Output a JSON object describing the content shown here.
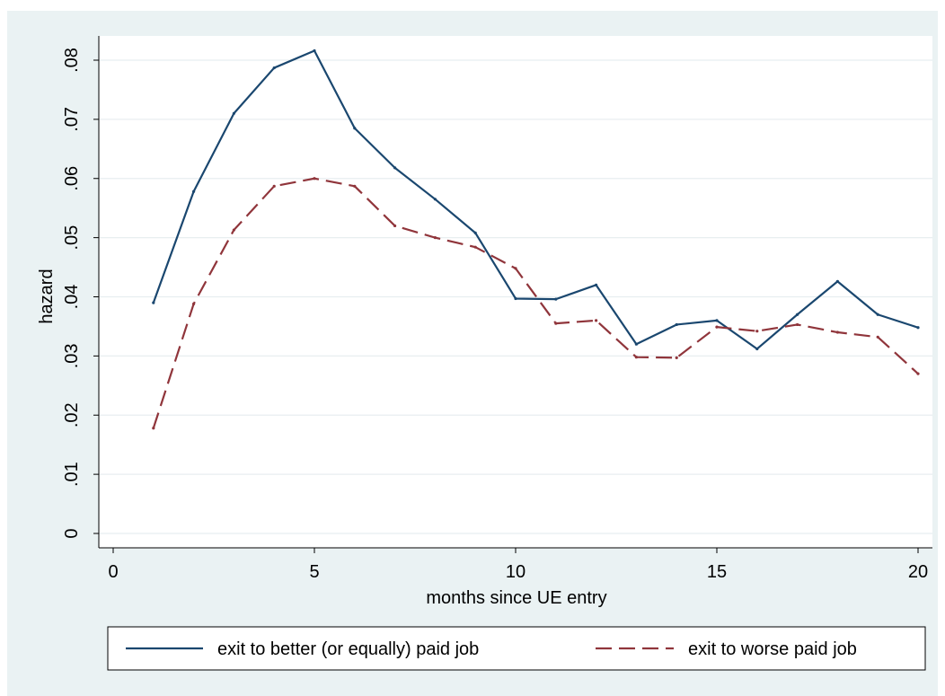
{
  "colors": {
    "background": "#eaf2f3",
    "plot_background": "#ffffff",
    "grid": "#e8eef0",
    "series_better": "#1a476f",
    "series_worse": "#90353b"
  },
  "chart_data": {
    "type": "line",
    "title": "",
    "xlabel": "months since UE entry",
    "ylabel": "hazard",
    "xlim": [
      0,
      20
    ],
    "ylim": [
      0,
      0.08
    ],
    "x_ticks": [
      0,
      5,
      10,
      15,
      20
    ],
    "x_tick_labels": [
      "0",
      "5",
      "10",
      "15",
      "20"
    ],
    "y_ticks": [
      0,
      0.01,
      0.02,
      0.03,
      0.04,
      0.05,
      0.06,
      0.07,
      0.08
    ],
    "y_tick_labels": [
      "0",
      ".01",
      ".02",
      ".03",
      ".04",
      ".05",
      ".06",
      ".07",
      ".08"
    ],
    "grid": true,
    "legend_position": "bottom",
    "x": [
      1,
      2,
      3,
      4,
      5,
      6,
      7,
      8,
      9,
      10,
      11,
      12,
      13,
      14,
      15,
      16,
      17,
      18,
      19,
      20
    ],
    "series": [
      {
        "name": "exit to better (or equally) paid job",
        "style": "solid",
        "values": [
          0.039,
          0.0578,
          0.071,
          0.0787,
          0.0816,
          0.0685,
          0.0618,
          0.0565,
          0.0508,
          0.0397,
          0.0396,
          0.042,
          0.032,
          0.0353,
          0.036,
          0.0312,
          0.037,
          0.0426,
          0.037,
          0.0348
        ]
      },
      {
        "name": "exit to worse paid job",
        "style": "dashed",
        "values": [
          0.0178,
          0.0388,
          0.0513,
          0.0587,
          0.06,
          0.0587,
          0.052,
          0.05,
          0.0484,
          0.0448,
          0.0355,
          0.036,
          0.0298,
          0.0297,
          0.0349,
          0.0342,
          0.0353,
          0.034,
          0.0332,
          0.027
        ]
      }
    ]
  }
}
